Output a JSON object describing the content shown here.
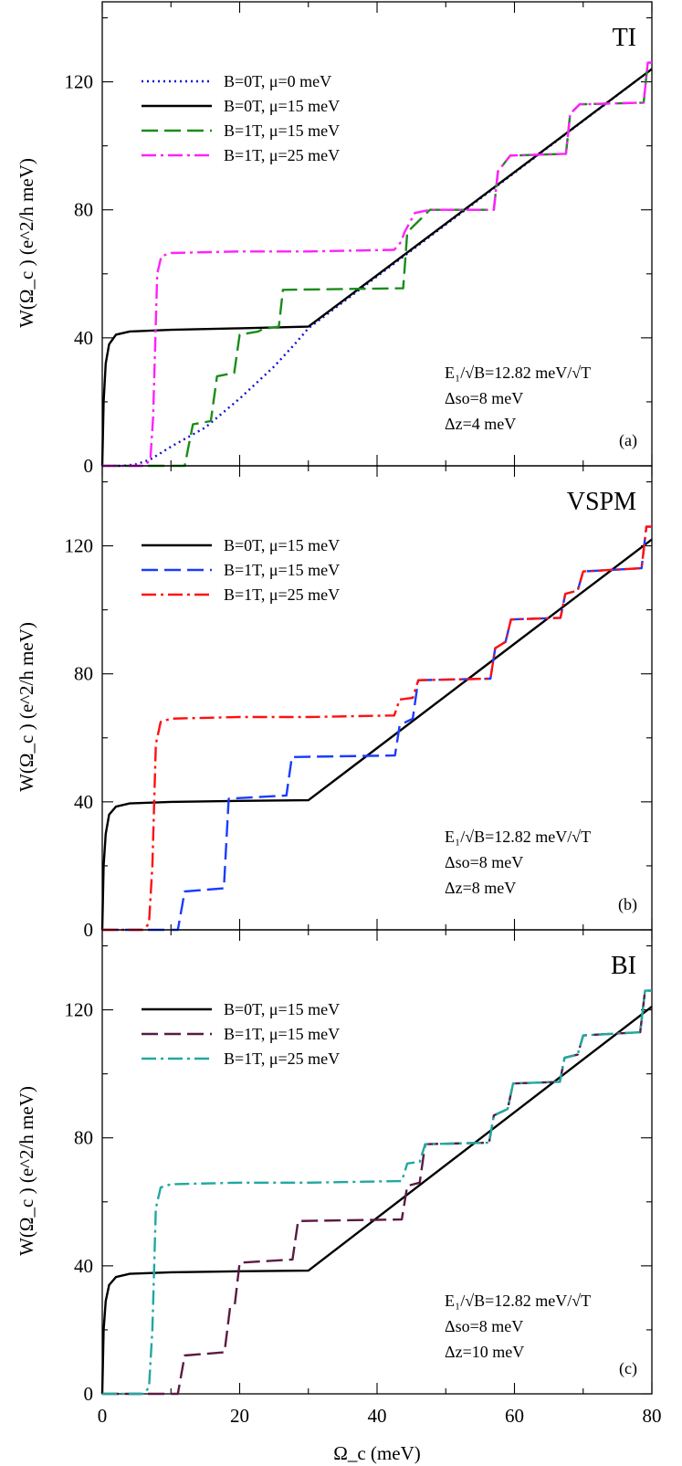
{
  "chart_data": [
    {
      "type": "line",
      "panel_title": "TI",
      "panel_label": "(a)",
      "xlabel": "Ω_c (meV)",
      "ylabel": "W(Ω_c ) (e^2/h meV)",
      "xlim": [
        0,
        80
      ],
      "ylim": [
        0,
        145
      ],
      "x_ticks": [
        "",
        "",
        "",
        "",
        ""
      ],
      "y_ticks": [
        "0",
        "40",
        "80",
        "120"
      ],
      "y_tick_values": [
        0,
        40,
        80,
        120
      ],
      "legend_position": "top-left",
      "annotations": [
        "E₁/√B=12.82 meV/√T",
        "Δso=8 meV",
        "Δz=4 meV"
      ],
      "series": [
        {
          "name": "B=0T, μ=0 meV",
          "color": "#1010d0",
          "style": "dotted",
          "x": [
            0,
            3,
            5,
            7,
            10,
            15,
            20,
            25,
            28,
            30,
            80
          ],
          "y": [
            0,
            0,
            0.5,
            2,
            6,
            12,
            21,
            31,
            38,
            43,
            124
          ]
        },
        {
          "name": "B=0T, μ=15 meV",
          "color": "#000000",
          "style": "solid",
          "x": [
            0,
            0.2,
            0.5,
            1,
            2,
            4,
            10,
            20,
            30,
            80
          ],
          "y": [
            0,
            20,
            32,
            38,
            41,
            42,
            42.5,
            43,
            43.5,
            124
          ]
        },
        {
          "name": "B=1T, μ=15 meV",
          "color": "#1a8c1a",
          "style": "dashed",
          "x": [
            0,
            12,
            13.2,
            15.8,
            16.7,
            19.2,
            20,
            22.7,
            23.4,
            25.7,
            26.3,
            43.8,
            44.4,
            47.7,
            48.3,
            57,
            57.6,
            59.4,
            60,
            67.5,
            68.1,
            69.5,
            70.1,
            78.8,
            79.4,
            80
          ],
          "y": [
            0,
            0,
            13,
            14,
            28,
            29,
            41,
            42,
            42.8,
            43.5,
            55,
            55.5,
            73,
            80,
            80,
            80,
            92,
            97,
            97,
            97.5,
            110,
            113,
            113,
            113.5,
            126,
            126
          ]
        },
        {
          "name": "B=1T, μ=25 meV",
          "color": "#ff20ff",
          "style": "dashdot",
          "x": [
            0,
            6.2,
            7,
            7.4,
            8,
            8.6,
            10,
            20,
            30,
            42.5,
            43.5,
            44,
            45.5,
            47.7,
            48.3,
            57,
            57.6,
            59.4,
            60,
            67.5,
            68.1,
            69.5,
            70.1,
            78.8,
            79.4,
            80
          ],
          "y": [
            0,
            0,
            2,
            15,
            60,
            65.5,
            66.5,
            67,
            67,
            67.5,
            70,
            73,
            79,
            80,
            80,
            80,
            92,
            97,
            97,
            97.5,
            110,
            113,
            113,
            113.5,
            126,
            126
          ]
        }
      ]
    },
    {
      "type": "line",
      "panel_title": "VSPM",
      "panel_label": "(b)",
      "xlabel": "Ω_c (meV)",
      "ylabel": "W(Ω_c ) (e^2/h meV)",
      "xlim": [
        0,
        80
      ],
      "ylim": [
        0,
        145
      ],
      "x_ticks": [
        "",
        "",
        "",
        "",
        ""
      ],
      "y_ticks": [
        "0",
        "40",
        "80",
        "120"
      ],
      "y_tick_values": [
        0,
        40,
        80,
        120
      ],
      "legend_position": "top-left",
      "annotations": [
        "E₁/√B=12.82 meV/√T",
        "Δso=8 meV",
        "Δz=8 meV"
      ],
      "series": [
        {
          "name": "B=0T, μ=15 meV",
          "color": "#000000",
          "style": "solid",
          "x": [
            0,
            0.2,
            0.5,
            1,
            2,
            4,
            10,
            20,
            30,
            80
          ],
          "y": [
            0,
            20,
            30,
            36,
            38.5,
            39.5,
            40,
            40.3,
            40.5,
            122
          ]
        },
        {
          "name": "B=1T, μ=15 meV",
          "color": "#1a3cff",
          "style": "dashed",
          "x": [
            0,
            11,
            12,
            17.7,
            18.4,
            26.8,
            27.6,
            42.6,
            43.3,
            45.2,
            46,
            56.5,
            57.2,
            58.7,
            59.5,
            66.7,
            67.4,
            69.2,
            70,
            78.5,
            79.2,
            80
          ],
          "y": [
            0,
            0,
            12,
            13,
            41,
            42,
            54,
            54.5,
            64,
            66,
            78,
            78.5,
            88,
            90,
            97,
            97.5,
            105,
            106,
            112,
            113,
            126,
            126
          ]
        },
        {
          "name": "B=1T, μ=25 meV",
          "color": "#ff1010",
          "style": "dashdot",
          "x": [
            0,
            6,
            6.8,
            7.3,
            7.8,
            8.5,
            10,
            20,
            30,
            42.5,
            43.3,
            45.2,
            46,
            56.5,
            57.2,
            58.7,
            59.5,
            66.7,
            67.4,
            69.2,
            70,
            78.5,
            79.2,
            80
          ],
          "y": [
            0,
            0,
            2,
            20,
            58,
            65,
            66,
            66.5,
            66.5,
            67,
            72,
            72.5,
            78,
            78.5,
            88,
            90,
            97,
            97.5,
            105,
            106,
            112,
            113,
            126,
            126
          ]
        }
      ]
    },
    {
      "type": "line",
      "panel_title": "BI",
      "panel_label": "(c)",
      "xlabel": "Ω_c (meV)",
      "ylabel": "W(Ω_c ) (e^2/h meV)",
      "xlim": [
        0,
        80
      ],
      "ylim": [
        0,
        145
      ],
      "x_ticks": [
        "0",
        "20",
        "40",
        "60",
        "80"
      ],
      "y_ticks": [
        "0",
        "40",
        "80",
        "120"
      ],
      "y_tick_values": [
        0,
        40,
        80,
        120
      ],
      "legend_position": "top-left",
      "annotations": [
        "E₁/√B=12.82 meV/√T",
        "Δso=8 meV",
        "Δz=10 meV"
      ],
      "series": [
        {
          "name": "B=0T, μ=15 meV",
          "color": "#000000",
          "style": "solid",
          "x": [
            0,
            0.2,
            0.5,
            1,
            2,
            4,
            10,
            20,
            30,
            80
          ],
          "y": [
            0,
            20,
            29,
            34,
            36.5,
            37.5,
            38,
            38.3,
            38.5,
            121
          ]
        },
        {
          "name": "B=1T, μ=15 meV",
          "color": "#5a1a44",
          "style": "dashed",
          "x": [
            0,
            11,
            12,
            17.8,
            18.6,
            19.3,
            20,
            27.7,
            28.5,
            43.6,
            44.4,
            46.2,
            47,
            56.3,
            57,
            59,
            59.8,
            66.6,
            67.3,
            69.2,
            70,
            78.3,
            79,
            80
          ],
          "y": [
            0,
            0,
            12,
            13,
            27,
            28,
            41,
            42,
            54,
            54.5,
            65,
            66,
            78,
            78.5,
            87,
            89,
            97,
            97.5,
            105,
            106,
            112,
            113,
            126,
            126
          ]
        },
        {
          "name": "B=1T, μ=25 meV",
          "color": "#20a8a0",
          "style": "dashdot",
          "x": [
            0,
            6,
            6.8,
            7.3,
            7.8,
            8.5,
            10,
            20,
            30,
            43.6,
            44.4,
            46.2,
            47,
            56.3,
            57,
            59,
            59.8,
            66.6,
            67.3,
            69.2,
            70,
            78.3,
            79,
            80
          ],
          "y": [
            0,
            0,
            2,
            20,
            58,
            64.5,
            65.5,
            66,
            66,
            66.5,
            72,
            72.5,
            78,
            78.5,
            87,
            89,
            97,
            97.5,
            105,
            106,
            112,
            113,
            126,
            126
          ]
        }
      ]
    }
  ]
}
